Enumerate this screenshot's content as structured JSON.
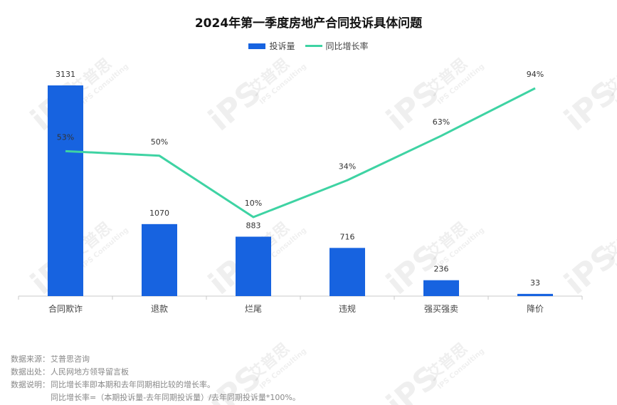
{
  "chart_data": {
    "type": "bar",
    "title": "2024年第一季度房地产合同投诉具体问题",
    "categories": [
      "合同欺诈",
      "退款",
      "烂尾",
      "违规",
      "强买强卖",
      "降价"
    ],
    "series": [
      {
        "name": "投诉量",
        "type": "bar",
        "values": [
          3131,
          1070,
          883,
          716,
          236,
          33
        ],
        "labels": [
          "3131",
          "1070",
          "883",
          "716",
          "236",
          "33"
        ],
        "color": "#1763e0"
      },
      {
        "name": "同比增长率",
        "type": "line",
        "values": [
          53,
          50,
          10,
          34,
          63,
          94
        ],
        "labels": [
          "53%",
          "50%",
          "10%",
          "34%",
          "63%",
          "94%"
        ],
        "color": "#3ed3a3"
      }
    ],
    "ylim": [
      0,
      3131
    ],
    "y2lim": [
      0,
      100
    ],
    "grid": false,
    "legend": "top-center"
  },
  "notes": [
    {
      "key": "数据来源：",
      "value": "艾普思咨询"
    },
    {
      "key": "数据出处：",
      "value": "人民网地方领导留言板"
    },
    {
      "key": "数据说明：",
      "value": "同比增长率即本期和去年同期相比较的增长率。"
    }
  ],
  "formula": "同比增长率=（本期投诉量-去年同期投诉量）/去年同期投诉量*100%。",
  "watermark": {
    "logo": "iPS",
    "cn": "艾普思",
    "en": "IPS Consulting"
  }
}
